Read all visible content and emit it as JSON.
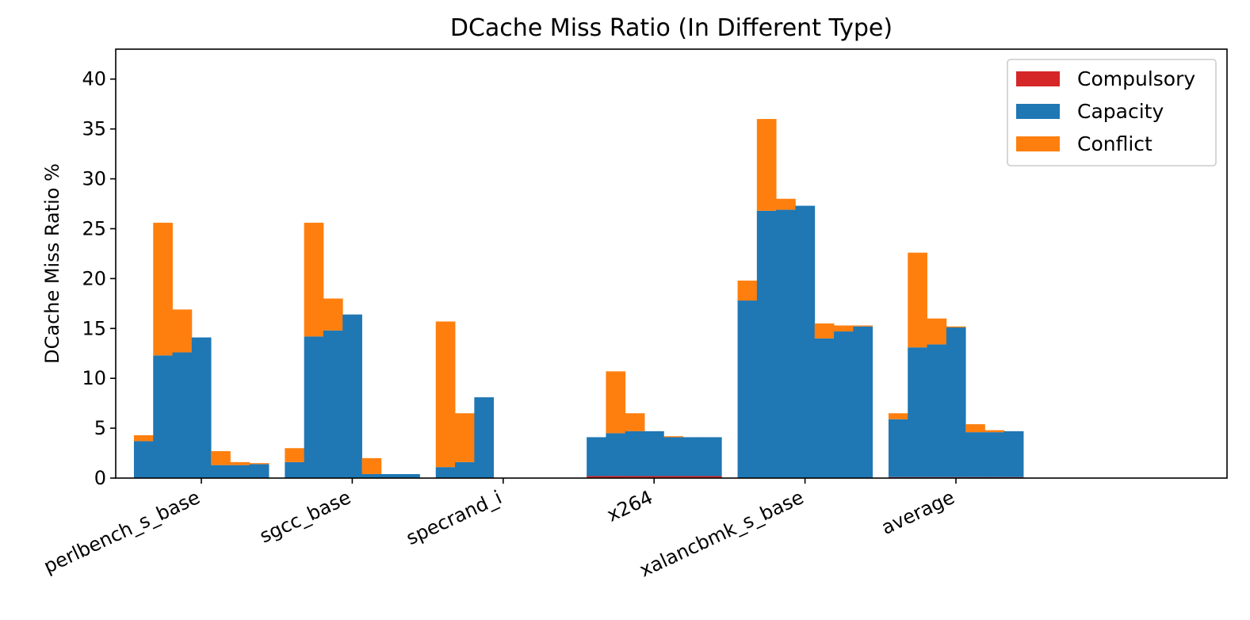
{
  "chart_data": {
    "type": "bar",
    "title": "DCache Miss Ratio (In Different Type)",
    "xlabel": "",
    "ylabel": "DCache Miss Ratio %",
    "ylim": [
      0,
      43
    ],
    "yticks": [
      0,
      5,
      10,
      15,
      20,
      25,
      30,
      35,
      40
    ],
    "grid": false,
    "legend_position": "top-right",
    "stacked": true,
    "categories": [
      "perlbench_s_base",
      "sgcc_base",
      "specrand_i",
      "x264",
      "xalancbmk_s_base",
      "average"
    ],
    "bars_per_category": 7,
    "series": [
      {
        "name": "Compulsory",
        "color": "#d62728",
        "values": [
          [
            0,
            0,
            0,
            0,
            0,
            0,
            0
          ],
          [
            0,
            0,
            0,
            0,
            0,
            0,
            0
          ],
          [
            0,
            0,
            0,
            0,
            0,
            0,
            0
          ],
          [
            0.2,
            0.2,
            0.2,
            0.2,
            0.2,
            0.2,
            0.2
          ],
          [
            0,
            0,
            0,
            0,
            0,
            0,
            0
          ],
          [
            0.1,
            0.1,
            0.1,
            0.1,
            0.1,
            0.1,
            0.1
          ]
        ]
      },
      {
        "name": "Capacity",
        "color": "#1f77b4",
        "values": [
          [
            3.7,
            12.3,
            12.6,
            14.1,
            1.3,
            1.3,
            1.4
          ],
          [
            1.6,
            14.2,
            14.8,
            16.4,
            0.4,
            0.4,
            0.4
          ],
          [
            1.1,
            1.6,
            8.1,
            0,
            0,
            0,
            0
          ],
          [
            3.9,
            4.3,
            4.5,
            4.5,
            3.9,
            3.9,
            3.9
          ],
          [
            17.8,
            26.8,
            26.9,
            27.3,
            14.0,
            14.7,
            15.2
          ],
          [
            5.8,
            13.0,
            13.3,
            15.0,
            4.5,
            4.5,
            4.6
          ]
        ]
      },
      {
        "name": "Conflict",
        "color": "#ff7f0e",
        "values": [
          [
            0.6,
            13.3,
            4.3,
            0,
            1.4,
            0.3,
            0.1
          ],
          [
            1.4,
            11.4,
            3.2,
            0,
            1.6,
            0,
            0
          ],
          [
            14.6,
            4.9,
            0,
            0,
            0,
            0,
            0
          ],
          [
            0,
            6.2,
            1.8,
            0,
            0.1,
            0,
            0
          ],
          [
            2.0,
            9.2,
            1.1,
            0,
            1.5,
            0.6,
            0.1
          ],
          [
            0.6,
            9.5,
            2.6,
            0.1,
            0.8,
            0.2,
            0
          ]
        ]
      }
    ]
  }
}
